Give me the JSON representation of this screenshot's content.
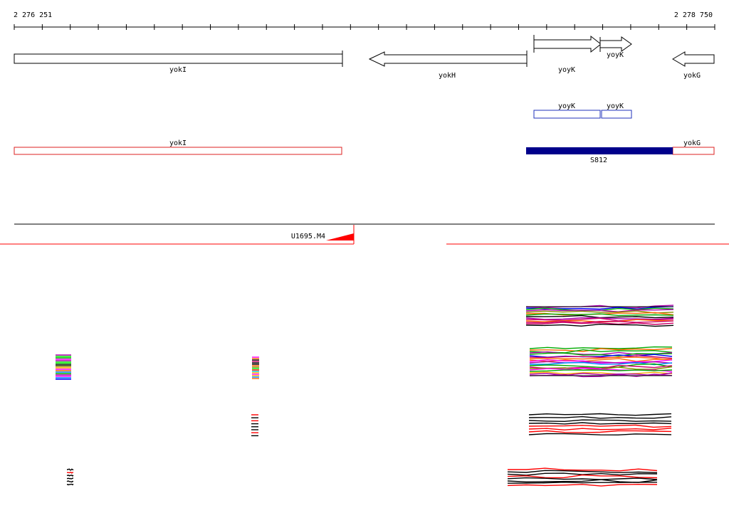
{
  "ruler": {
    "start_label": "2 276 251",
    "end_label": "2 278 750"
  },
  "genes": [
    {
      "name": "yokI",
      "strand": "none"
    },
    {
      "name": "yokH",
      "strand": "-"
    },
    {
      "name": "yoyK",
      "strand": "+"
    },
    {
      "name": "yoyK",
      "strand": "+"
    },
    {
      "name": "yokG",
      "strand": "-"
    }
  ],
  "gene_labels": {
    "yokI": "yokI",
    "yokH": "yokH",
    "yoyK_main": "yoyK",
    "yoyK_small": "yoyK",
    "yokG": "yokG"
  },
  "annotations_blue": {
    "left_label": "yoyK",
    "right_label": "yoyK"
  },
  "annotations_red": {
    "yokI_label": "yokI",
    "yokG_label": "yokG"
  },
  "region": {
    "label": "S812",
    "color": "#00008b"
  },
  "transcript": {
    "label": "U1695.M4"
  },
  "colors": {
    "gene_outline": "#000000",
    "annotation_blue": "#2233bb",
    "annotation_red": "#dd2222",
    "track_red": "#ff0000"
  }
}
